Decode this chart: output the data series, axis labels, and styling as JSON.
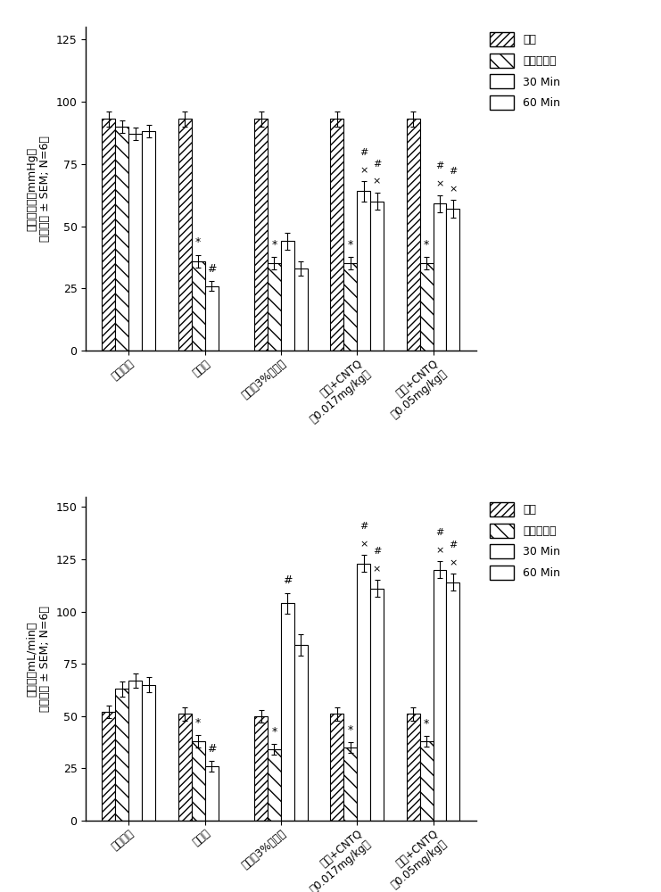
{
  "top_chart": {
    "ylabel1": "平均动脉压（mmHg）",
    "ylabel2": "（平均值 ± SEM; N=6）",
    "ylim": [
      0,
      130
    ],
    "yticks": [
      0,
      25,
      50,
      75,
      100,
      125
    ],
    "values": [
      [
        93,
        90,
        87,
        88
      ],
      [
        93,
        36,
        26,
        null
      ],
      [
        93,
        35,
        44,
        33
      ],
      [
        93,
        35,
        64,
        60
      ],
      [
        93,
        35,
        59,
        57
      ]
    ],
    "errors": [
      [
        3,
        2.5,
        2.5,
        2.5
      ],
      [
        3,
        2.5,
        2.0,
        null
      ],
      [
        3,
        2.5,
        3.5,
        3.0
      ],
      [
        3,
        2.5,
        4.0,
        3.5
      ],
      [
        3,
        2.5,
        3.5,
        3.5
      ]
    ]
  },
  "bottom_chart": {
    "ylabel1": "心输出（mL/min）",
    "ylabel2": "（平均值 ± SEM; N=6）",
    "ylim": [
      0,
      155
    ],
    "yticks": [
      0,
      25,
      50,
      75,
      100,
      125,
      150
    ],
    "values": [
      [
        52,
        63,
        67,
        65
      ],
      [
        51,
        38,
        26,
        null
      ],
      [
        50,
        34,
        104,
        84
      ],
      [
        51,
        35,
        123,
        111
      ],
      [
        51,
        38,
        120,
        114
      ]
    ],
    "errors": [
      [
        3,
        3.5,
        3.5,
        3.5
      ],
      [
        3,
        3.0,
        2.5,
        null
      ],
      [
        3,
        2.5,
        5.0,
        5.0
      ],
      [
        3,
        2.5,
        4.0,
        4.0
      ],
      [
        3,
        2.5,
        4.0,
        4.0
      ]
    ]
  },
  "group_labels": [
    "假性对照",
    "无复苏",
    "载剂（3%盐水）",
    "载剂+CNTQ\n（0.017mg/kg）",
    "载剂+CNTQ\n（0.05mg/kg）"
  ],
  "legend_labels": [
    "基线",
    "出血性休克",
    "30 Min",
    "60 Min"
  ],
  "top_annots": [
    [
      1,
      1,
      "*"
    ],
    [
      1,
      2,
      "#"
    ],
    [
      2,
      1,
      "*"
    ],
    [
      3,
      1,
      "*"
    ],
    [
      3,
      2,
      "×#"
    ],
    [
      3,
      3,
      "×#"
    ],
    [
      4,
      1,
      "*"
    ],
    [
      4,
      2,
      "×#"
    ],
    [
      4,
      3,
      "×#"
    ]
  ],
  "bottom_annots": [
    [
      1,
      1,
      "*"
    ],
    [
      1,
      2,
      "#"
    ],
    [
      2,
      1,
      "*"
    ],
    [
      2,
      2,
      "#"
    ],
    [
      3,
      1,
      "*"
    ],
    [
      3,
      2,
      "×#"
    ],
    [
      3,
      3,
      "×#"
    ],
    [
      4,
      1,
      "*"
    ],
    [
      4,
      2,
      "×#"
    ],
    [
      4,
      3,
      "×#"
    ]
  ],
  "background_color": "white"
}
